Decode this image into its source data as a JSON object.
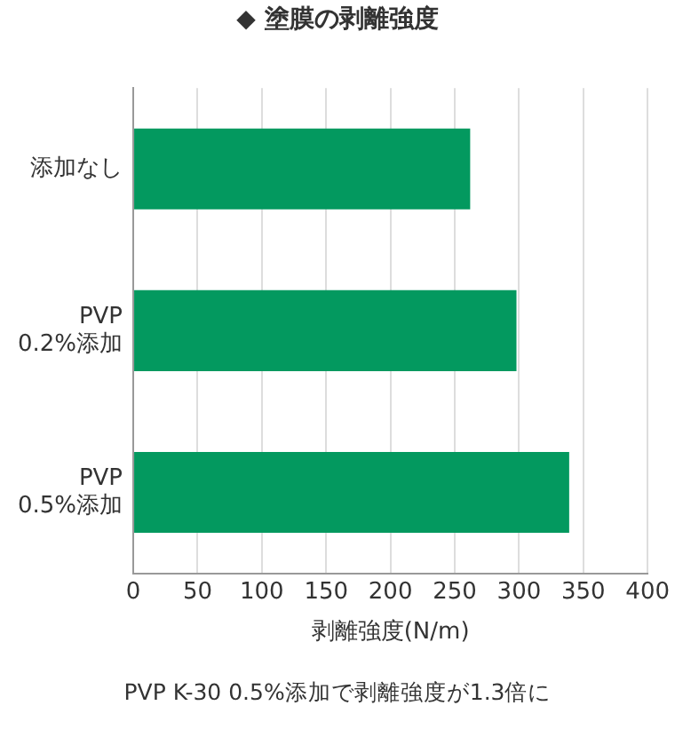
{
  "chart_data": {
    "type": "bar",
    "orientation": "horizontal",
    "title": "◆ 塗膜の剥離強度",
    "categories": [
      "添加なし",
      "PVP\n0.2%添加",
      "PVP\n0.5%添加"
    ],
    "values": [
      262,
      298,
      339
    ],
    "color": "#03995f",
    "xlim": [
      0,
      400
    ],
    "xticks": [
      0,
      50,
      100,
      150,
      200,
      250,
      300,
      350,
      400
    ],
    "xlabel": "剥離強度(N/m)",
    "grid": "x",
    "legend": false,
    "annotations": [
      "PVP K-30 0.5%添加で剥離強度が1.3倍に"
    ]
  }
}
